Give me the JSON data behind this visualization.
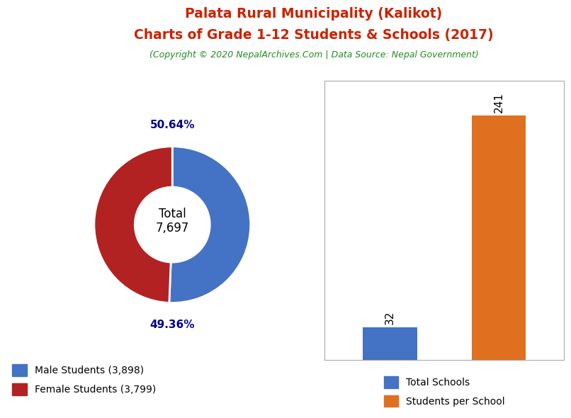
{
  "title_line1": "Palata Rural Municipality (Kalikot)",
  "title_line2": "Charts of Grade 1-12 Students & Schools (2017)",
  "subtitle": "(Copyright © 2020 NepalArchives.Com | Data Source: Nepal Government)",
  "title_color": "#cc2200",
  "subtitle_color": "#228B22",
  "male_students": 3898,
  "female_students": 3799,
  "total_students": 7697,
  "male_pct": 50.64,
  "female_pct": 49.36,
  "male_color": "#4472C4",
  "female_color": "#B22222",
  "donut_center_label": "Total\n7,697",
  "bar_categories": [
    "Total Schools",
    "Students per School"
  ],
  "bar_values": [
    32,
    241
  ],
  "bar_colors": [
    "#4472C4",
    "#E07020"
  ],
  "bar_label_color": "black",
  "legend_male_label": "Male Students (3,898)",
  "legend_female_label": "Female Students (3,799)",
  "legend_schools_label": "Total Schools",
  "legend_students_per_school_label": "Students per School",
  "pct_label_color": "#00008B",
  "background_color": "#ffffff"
}
